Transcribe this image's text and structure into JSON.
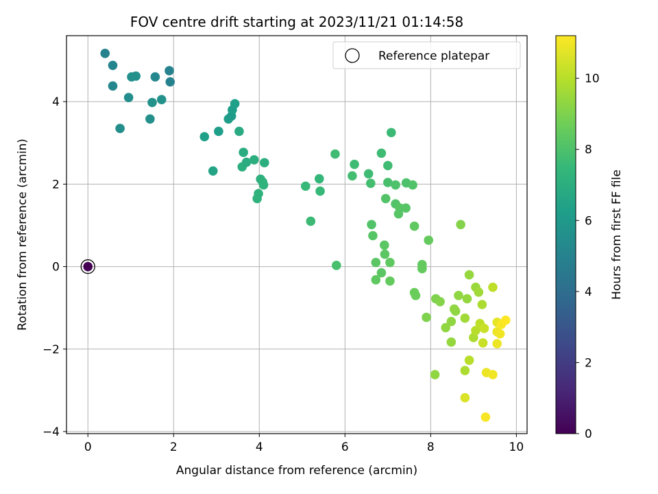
{
  "chart_data": {
    "type": "scatter",
    "title": "FOV centre drift starting at 2023/11/21 01:14:58",
    "xlabel": "Angular distance from reference (arcmin)",
    "ylabel": "Rotation from reference (arcmin)",
    "xlim": [
      -0.5,
      10.25
    ],
    "ylim": [
      -4.05,
      5.6
    ],
    "xticks": [
      0,
      2,
      4,
      6,
      8,
      10
    ],
    "yticks": [
      -4,
      -2,
      0,
      2,
      4
    ],
    "xtick_labels": [
      "0",
      "2",
      "4",
      "6",
      "8",
      "10"
    ],
    "ytick_labels": [
      "−4",
      "−2",
      "0",
      "2",
      "4"
    ],
    "grid": true,
    "legend": {
      "position": "top-right",
      "entries": [
        "Reference platepar"
      ]
    },
    "colorbar": {
      "label": "Hours from first FF file",
      "range": [
        0,
        11.2
      ],
      "ticks": [
        0,
        2,
        4,
        6,
        8,
        10
      ],
      "tick_labels": [
        "0",
        "2",
        "4",
        "6",
        "8",
        "10"
      ],
      "colormap": "viridis"
    },
    "reference_point": {
      "x": 0,
      "y": 0,
      "hours": 0
    },
    "points": [
      {
        "x": 0.4,
        "y": 5.17,
        "h": 5.0
      },
      {
        "x": 0.58,
        "y": 4.88,
        "h": 5.1
      },
      {
        "x": 0.58,
        "y": 4.38,
        "h": 5.2
      },
      {
        "x": 0.75,
        "y": 3.35,
        "h": 5.5
      },
      {
        "x": 0.95,
        "y": 4.1,
        "h": 5.5
      },
      {
        "x": 1.02,
        "y": 4.6,
        "h": 5.6
      },
      {
        "x": 1.12,
        "y": 4.62,
        "h": 5.6
      },
      {
        "x": 1.45,
        "y": 3.58,
        "h": 5.6
      },
      {
        "x": 1.5,
        "y": 3.98,
        "h": 5.7
      },
      {
        "x": 1.57,
        "y": 4.6,
        "h": 5.2
      },
      {
        "x": 1.72,
        "y": 4.05,
        "h": 5.7
      },
      {
        "x": 1.9,
        "y": 4.75,
        "h": 5.0
      },
      {
        "x": 1.92,
        "y": 4.48,
        "h": 5.0
      },
      {
        "x": 2.72,
        "y": 3.15,
        "h": 6.3
      },
      {
        "x": 2.92,
        "y": 2.32,
        "h": 6.5
      },
      {
        "x": 3.05,
        "y": 3.28,
        "h": 6.2
      },
      {
        "x": 3.28,
        "y": 3.58,
        "h": 6.2
      },
      {
        "x": 3.35,
        "y": 3.65,
        "h": 6.1
      },
      {
        "x": 3.37,
        "y": 3.8,
        "h": 6.2
      },
      {
        "x": 3.43,
        "y": 3.95,
        "h": 6.3
      },
      {
        "x": 3.53,
        "y": 3.28,
        "h": 6.8
      },
      {
        "x": 3.6,
        "y": 2.42,
        "h": 7.0
      },
      {
        "x": 3.63,
        "y": 2.77,
        "h": 6.9
      },
      {
        "x": 3.7,
        "y": 2.53,
        "h": 6.9
      },
      {
        "x": 3.88,
        "y": 2.59,
        "h": 7.0
      },
      {
        "x": 3.95,
        "y": 1.65,
        "h": 7.2
      },
      {
        "x": 3.98,
        "y": 1.77,
        "h": 7.2
      },
      {
        "x": 4.03,
        "y": 2.12,
        "h": 7.1
      },
      {
        "x": 4.08,
        "y": 2.05,
        "h": 7.2
      },
      {
        "x": 4.1,
        "y": 1.98,
        "h": 7.2
      },
      {
        "x": 4.12,
        "y": 2.52,
        "h": 7.0
      },
      {
        "x": 5.08,
        "y": 1.95,
        "h": 7.5
      },
      {
        "x": 5.2,
        "y": 1.1,
        "h": 7.6
      },
      {
        "x": 5.4,
        "y": 2.13,
        "h": 7.4
      },
      {
        "x": 5.42,
        "y": 1.83,
        "h": 7.5
      },
      {
        "x": 5.77,
        "y": 2.73,
        "h": 7.7
      },
      {
        "x": 5.8,
        "y": 0.03,
        "h": 7.9
      },
      {
        "x": 6.17,
        "y": 2.2,
        "h": 7.8
      },
      {
        "x": 6.22,
        "y": 2.48,
        "h": 7.7
      },
      {
        "x": 6.55,
        "y": 2.25,
        "h": 7.7
      },
      {
        "x": 6.6,
        "y": 2.02,
        "h": 7.8
      },
      {
        "x": 6.62,
        "y": 1.02,
        "h": 8.1
      },
      {
        "x": 6.65,
        "y": 0.75,
        "h": 8.2
      },
      {
        "x": 6.72,
        "y": 0.1,
        "h": 8.3
      },
      {
        "x": 6.72,
        "y": -0.32,
        "h": 8.4
      },
      {
        "x": 6.85,
        "y": 2.75,
        "h": 7.7
      },
      {
        "x": 6.85,
        "y": -0.15,
        "h": 8.3
      },
      {
        "x": 6.92,
        "y": 0.52,
        "h": 8.3
      },
      {
        "x": 6.93,
        "y": 0.3,
        "h": 8.3
      },
      {
        "x": 6.95,
        "y": 1.65,
        "h": 8.1
      },
      {
        "x": 7.0,
        "y": 2.04,
        "h": 7.9
      },
      {
        "x": 7.0,
        "y": 2.45,
        "h": 7.7
      },
      {
        "x": 7.05,
        "y": 0.1,
        "h": 8.4
      },
      {
        "x": 7.05,
        "y": -0.35,
        "h": 8.5
      },
      {
        "x": 7.08,
        "y": 3.25,
        "h": 7.6
      },
      {
        "x": 7.18,
        "y": 1.52,
        "h": 8.1
      },
      {
        "x": 7.18,
        "y": 1.98,
        "h": 8.0
      },
      {
        "x": 7.25,
        "y": 1.28,
        "h": 8.2
      },
      {
        "x": 7.28,
        "y": 1.42,
        "h": 8.2
      },
      {
        "x": 7.42,
        "y": 1.42,
        "h": 8.2
      },
      {
        "x": 7.43,
        "y": 2.03,
        "h": 8.0
      },
      {
        "x": 7.58,
        "y": 1.98,
        "h": 8.1
      },
      {
        "x": 7.62,
        "y": 0.98,
        "h": 8.4
      },
      {
        "x": 7.62,
        "y": -0.63,
        "h": 8.6
      },
      {
        "x": 7.65,
        "y": -0.7,
        "h": 8.6
      },
      {
        "x": 7.8,
        "y": 0.05,
        "h": 8.5
      },
      {
        "x": 7.8,
        "y": -0.05,
        "h": 8.5
      },
      {
        "x": 7.9,
        "y": -1.23,
        "h": 9.0
      },
      {
        "x": 7.95,
        "y": 0.64,
        "h": 8.5
      },
      {
        "x": 8.1,
        "y": -2.62,
        "h": 9.3
      },
      {
        "x": 8.12,
        "y": -0.78,
        "h": 9.0
      },
      {
        "x": 8.22,
        "y": -0.85,
        "h": 9.1
      },
      {
        "x": 8.35,
        "y": -1.48,
        "h": 9.3
      },
      {
        "x": 8.48,
        "y": -1.83,
        "h": 9.4
      },
      {
        "x": 8.48,
        "y": -1.33,
        "h": 9.3
      },
      {
        "x": 8.55,
        "y": -1.03,
        "h": 9.3
      },
      {
        "x": 8.58,
        "y": -1.08,
        "h": 9.3
      },
      {
        "x": 8.65,
        "y": -0.7,
        "h": 9.3
      },
      {
        "x": 8.7,
        "y": 1.02,
        "h": 9.1
      },
      {
        "x": 8.8,
        "y": -2.52,
        "h": 9.8
      },
      {
        "x": 8.8,
        "y": -1.25,
        "h": 9.6
      },
      {
        "x": 8.8,
        "y": -3.18,
        "h": 10.6
      },
      {
        "x": 8.85,
        "y": -0.78,
        "h": 9.4
      },
      {
        "x": 8.9,
        "y": -2.27,
        "h": 10.0
      },
      {
        "x": 8.9,
        "y": -0.2,
        "h": 9.4
      },
      {
        "x": 9.0,
        "y": -1.72,
        "h": 9.8
      },
      {
        "x": 9.05,
        "y": -0.5,
        "h": 9.5
      },
      {
        "x": 9.05,
        "y": -1.55,
        "h": 10.0
      },
      {
        "x": 9.12,
        "y": -0.62,
        "h": 9.6
      },
      {
        "x": 9.15,
        "y": -1.38,
        "h": 10.1
      },
      {
        "x": 9.2,
        "y": -0.92,
        "h": 9.8
      },
      {
        "x": 9.22,
        "y": -1.85,
        "h": 10.3
      },
      {
        "x": 9.25,
        "y": -1.5,
        "h": 10.3
      },
      {
        "x": 9.28,
        "y": -3.65,
        "h": 11.1
      },
      {
        "x": 9.3,
        "y": -2.57,
        "h": 10.9
      },
      {
        "x": 9.45,
        "y": -0.5,
        "h": 10.1
      },
      {
        "x": 9.45,
        "y": -2.62,
        "h": 11.0
      },
      {
        "x": 9.55,
        "y": -1.35,
        "h": 10.8
      },
      {
        "x": 9.55,
        "y": -1.58,
        "h": 10.9
      },
      {
        "x": 9.55,
        "y": -1.87,
        "h": 10.9
      },
      {
        "x": 9.62,
        "y": -1.63,
        "h": 11.0
      },
      {
        "x": 9.65,
        "y": -1.4,
        "h": 11.1
      },
      {
        "x": 9.75,
        "y": -1.3,
        "h": 11.2
      }
    ]
  }
}
